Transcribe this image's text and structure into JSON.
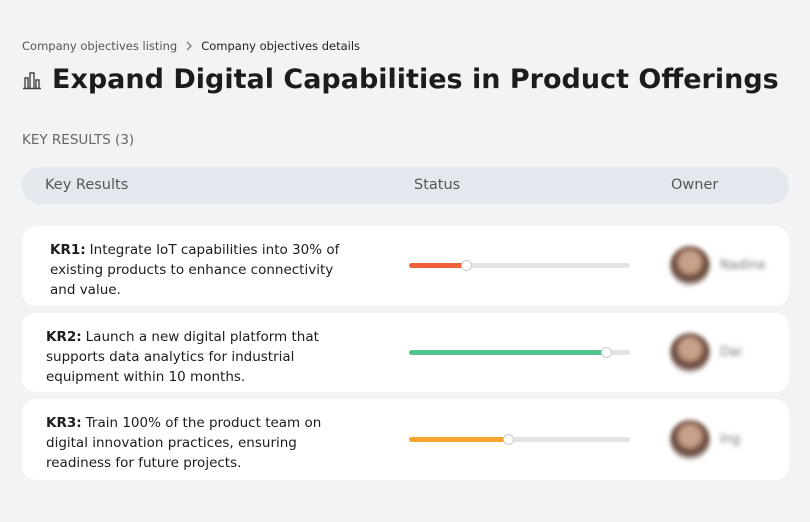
{
  "breadcrumb": {
    "items": [
      "Company objectives listing",
      "Company objectives details"
    ]
  },
  "header": {
    "title": "Expand Digital Capabilities in Product Offerings"
  },
  "section": {
    "label": "KEY RESULTS (3)"
  },
  "table": {
    "columns": [
      "Key Results",
      "Status",
      "Owner"
    ],
    "rows": [
      {
        "id": "KR1:",
        "text": "Integrate IoT capabilities into 30% of existing products to enhance connectivity and value.",
        "progress": 26,
        "color": "#f0603a",
        "owner": "Nadine"
      },
      {
        "id": "KR2:",
        "text": "Launch a new digital platform that supports data analytics for industrial equipment within 10 months.",
        "progress": 89,
        "color": "#52c38a",
        "owner": "Dai"
      },
      {
        "id": "KR3:",
        "text": "Train 100% of the product team on digital innovation practices, ensuring readiness for future projects.",
        "progress": 45,
        "color": "#f5a52c",
        "owner": "Ing"
      }
    ]
  }
}
